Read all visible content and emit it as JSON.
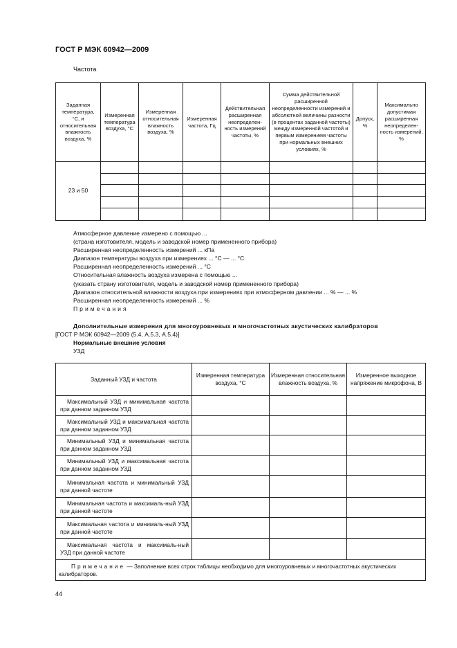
{
  "header": "ГОСТ Р МЭК 60942—2009",
  "section_title": "Частота",
  "table1": {
    "headers": [
      "Заданная температура, °С, и относительная влажность воздуха, %",
      "Измеренная температура воздуха, °С",
      "Измеренная относительная влажность воздуха, %",
      "Измеренная частота, Гц",
      "Действительная расширенная неопределен-ность измерений частоты, %",
      "Сумма действительной расширенной неопределенности измерений и абсолютной величины разности (в процентах заданной частоты) между измеренной частотой и первым измерением частоты при нормальных внешних условиях, %",
      "Допуск, %",
      "Максимально допустимая расширенная неопределен-ность измерений, %"
    ],
    "merged_cell": "23 и 50"
  },
  "lines": [
    "Атмосферное давление измерено с помощью ...",
    "(страна изготовителя, модель и заводской номер примененного прибора)",
    "Расширенная неопределенность измерений ... кПа",
    "Диапазон температуры воздуха при измерениях ... °С — ... °С",
    "Расширенная неопределенность измерений ... °С",
    "Относительная влажность воздуха измерена с помощью ...",
    "(указать страну изготовителя, модель и заводской номер примененного прибора)",
    "Диапазон относительной влажности воздуха при измерениях при атмосферном давлении ... % — ... %",
    "Расширенная неопределенность измерений ... %"
  ],
  "notes_label": "Примечания",
  "additional_title": "Дополнительные измерения для многоуровневых и многочастотных акустических калибраторов",
  "additional_ref": "[ГОСТ Р МЭК 60942—2009 (5.4, А.5.3, А.5.4)]",
  "normal_conditions": "Нормальные внешние условия",
  "uzd": "УЗД",
  "table2": {
    "headers": [
      "Заданный УЗД и частота",
      "Измеренная температура воздуха, °С",
      "Измеренная относительная влажность воздуха, %",
      "Измеренное выходное напряжение микрофона, В"
    ],
    "rows": [
      "Максимальный УЗД и минимальная частота при данном заданном УЗД",
      "Максимальный УЗД и максимальная частота при данном заданном УЗД",
      "Минимальный УЗД и минимальная частота при данном заданном УЗД",
      "Минимальный УЗД и максимальная частота при данном заданном УЗД",
      "Минимальная частота и минимальный УЗД при данной частоте",
      "Минимальная частота и максималь-ный УЗД при данной частоте",
      "Максимальная частота и минималь-ный УЗД при данной частоте",
      "Максимальная частота и максималь-ный УЗД при данной частоте"
    ],
    "note_label": "Примечание",
    "note_text": " — Заполнение всех строк таблицы необходимо для многоуровневых и многочастотных акустических калибраторов."
  },
  "page_number": "44"
}
